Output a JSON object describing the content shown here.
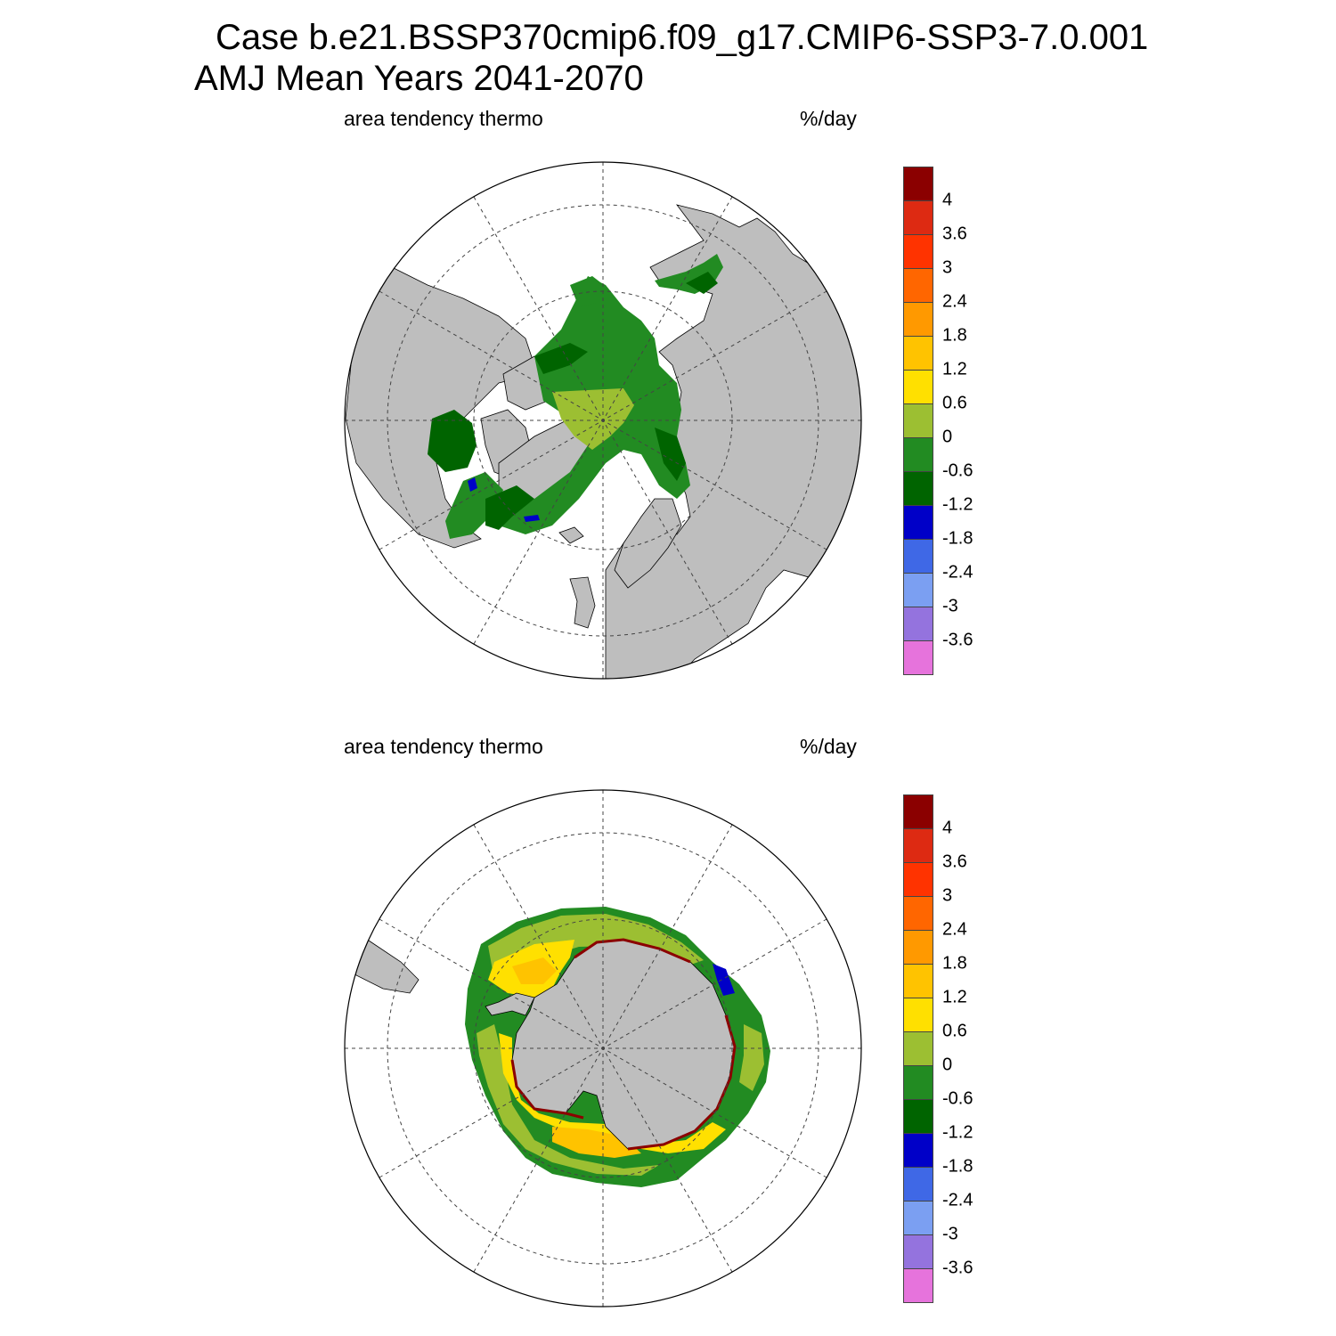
{
  "figure": {
    "title_line1": "Case b.e21.BSSP370cmip6.f09_g17.CMIP6-SSP3-7.0.001",
    "title_line2": "AMJ Mean   Years 2041-2070"
  },
  "panels": [
    {
      "hemisphere": "north",
      "left_string": "area tendency thermo",
      "right_string": "%/day"
    },
    {
      "hemisphere": "south",
      "left_string": "area tendency thermo",
      "right_string": "%/day"
    }
  ],
  "colorbar": {
    "labels": [
      "4",
      "3.6",
      "3",
      "2.4",
      "1.8",
      "1.2",
      "0.6",
      "0",
      "-0.6",
      "-1.2",
      "-1.8",
      "-2.4",
      "-3",
      "-3.6"
    ],
    "colors": [
      "#8b0000",
      "#dd2a12",
      "#ff3300",
      "#ff6600",
      "#ff9900",
      "#ffc300",
      "#ffe000",
      "#9cbf32",
      "#228b22",
      "#006400",
      "#0000c8",
      "#3f68e6",
      "#7b9ff2",
      "#9473de",
      "#e673dc"
    ]
  },
  "map_colors": {
    "land": "#bebebe",
    "ocean_no_ice": "#ffffff"
  }
}
